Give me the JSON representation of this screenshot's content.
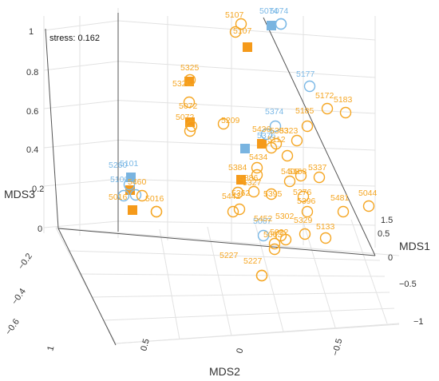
{
  "chart_data": {
    "type": "scatter",
    "title": "",
    "annotation": "stress: 0.162",
    "xlabel": "MDS1",
    "ylabel": "MDS2",
    "zlabel": "MDS3",
    "x_ticks": [
      "1.5",
      "0.5",
      "0",
      "−0.5",
      "−1"
    ],
    "y_ticks": [
      "1",
      "0.5",
      "0",
      "−0.5"
    ],
    "z_ticks": [
      "1",
      "0.8",
      "0.6",
      "0.4",
      "0.2",
      "0",
      "−0.2",
      "−0.4",
      "−0.6"
    ],
    "colors": {
      "orange": "#f5a623",
      "blue": "#7ab8e6",
      "orange_fill": "#f59a1a",
      "blue_fill": "#79b4e0"
    },
    "centroids": [
      {
        "group": "orange"
      },
      {
        "group": "orange"
      },
      {
        "group": "orange"
      },
      {
        "group": "orange"
      },
      {
        "group": "orange"
      },
      {
        "group": "orange"
      },
      {
        "group": "orange"
      },
      {
        "group": "blue"
      },
      {
        "group": "blue"
      },
      {
        "group": "blue"
      }
    ],
    "points": [
      {
        "label": "5107",
        "group": "orange"
      },
      {
        "label": "5107",
        "group": "orange"
      },
      {
        "label": "5074",
        "group": "blue"
      },
      {
        "label": "5074",
        "group": "blue"
      },
      {
        "label": "5325",
        "group": "orange"
      },
      {
        "label": "5325",
        "group": "orange"
      },
      {
        "label": "5072",
        "group": "orange"
      },
      {
        "label": "5072",
        "group": "orange"
      },
      {
        "label": "5177",
        "group": "blue"
      },
      {
        "label": "5172",
        "group": "orange"
      },
      {
        "label": "5183",
        "group": "orange"
      },
      {
        "label": "5185",
        "group": "orange"
      },
      {
        "label": "5209",
        "group": "orange"
      },
      {
        "label": "5374",
        "group": "blue"
      },
      {
        "label": "5376",
        "group": "blue"
      },
      {
        "label": "5436",
        "group": "orange"
      },
      {
        "label": "5323",
        "group": "orange"
      },
      {
        "label": "5112",
        "group": "orange"
      },
      {
        "label": "5383",
        "group": "orange"
      },
      {
        "label": "5434",
        "group": "orange"
      },
      {
        "label": "5384",
        "group": "orange"
      },
      {
        "label": "5386",
        "group": "orange"
      },
      {
        "label": "5327",
        "group": "orange"
      },
      {
        "label": "5408",
        "group": "orange"
      },
      {
        "label": "5168",
        "group": "orange"
      },
      {
        "label": "5337",
        "group": "orange"
      },
      {
        "label": "5442",
        "group": "orange"
      },
      {
        "label": "5362",
        "group": "orange"
      },
      {
        "label": "5395",
        "group": "orange"
      },
      {
        "label": "5276",
        "group": "orange"
      },
      {
        "label": "5396",
        "group": "orange"
      },
      {
        "label": "5481",
        "group": "orange"
      },
      {
        "label": "5044",
        "group": "orange"
      },
      {
        "label": "5067",
        "group": "blue"
      },
      {
        "label": "5452",
        "group": "orange"
      },
      {
        "label": "5302",
        "group": "orange"
      },
      {
        "label": "5329",
        "group": "orange"
      },
      {
        "label": "5032",
        "group": "orange"
      },
      {
        "label": "5133",
        "group": "orange"
      },
      {
        "label": "5063",
        "group": "orange"
      },
      {
        "label": "5227",
        "group": "orange"
      },
      {
        "label": "5227",
        "group": "orange"
      },
      {
        "label": "5260",
        "group": "blue"
      },
      {
        "label": "5101",
        "group": "blue"
      },
      {
        "label": "5100",
        "group": "blue"
      },
      {
        "label": "5460",
        "group": "orange"
      },
      {
        "label": "5016",
        "group": "orange"
      },
      {
        "label": "5016",
        "group": "orange"
      }
    ]
  }
}
